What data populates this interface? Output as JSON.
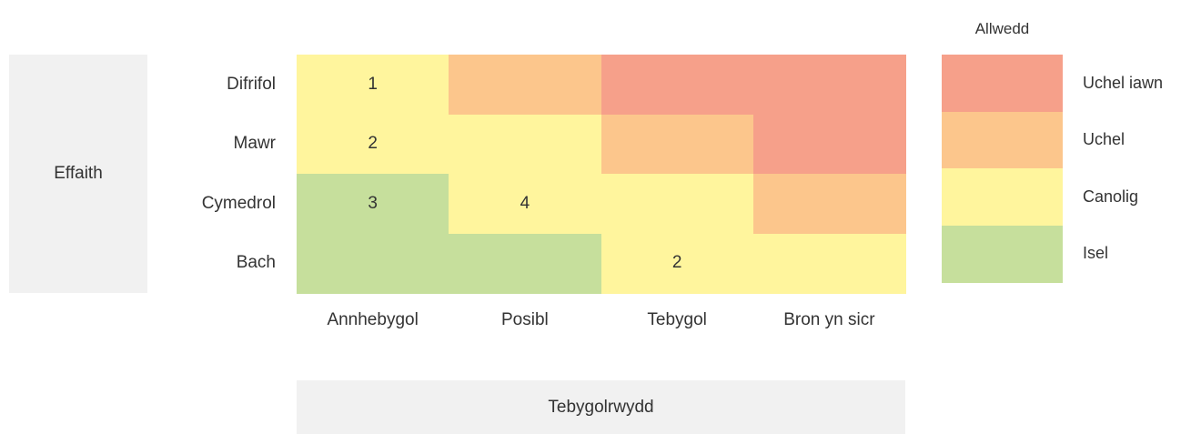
{
  "axis_y": {
    "title": "Effaith",
    "labels": [
      "Difrifol",
      "Mawr",
      "Cymedrol",
      "Bach"
    ]
  },
  "axis_x": {
    "title": "Tebygolrwydd",
    "labels": [
      "Annhebygol",
      "Posibl",
      "Tebygol",
      "Bron yn sicr"
    ]
  },
  "grid": {
    "levels": [
      [
        2,
        1,
        0,
        0
      ],
      [
        2,
        2,
        1,
        0
      ],
      [
        3,
        2,
        2,
        1
      ],
      [
        3,
        3,
        2,
        2
      ]
    ],
    "counts": [
      [
        1,
        null,
        null,
        null
      ],
      [
        2,
        null,
        null,
        null
      ],
      [
        3,
        4,
        null,
        null
      ],
      [
        null,
        null,
        2,
        null
      ]
    ]
  },
  "legend": {
    "title": "Allwedd",
    "items": [
      {
        "label": "Uchel iawn",
        "color": "#f6a08a"
      },
      {
        "label": "Uchel",
        "color": "#fcc68c"
      },
      {
        "label": "Canolig",
        "color": "#fff59d"
      },
      {
        "label": "Isel",
        "color": "#c6df9c"
      }
    ]
  }
}
